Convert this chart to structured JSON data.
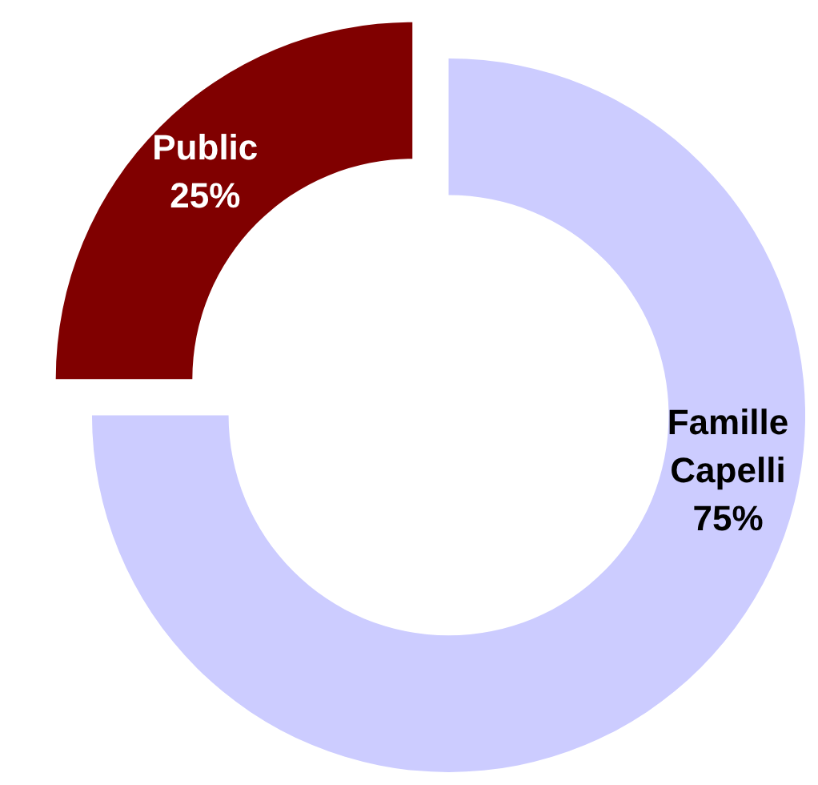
{
  "chart_data": {
    "type": "donut",
    "categories": [
      "Famille Capelli",
      "Public"
    ],
    "values": [
      75,
      25
    ],
    "value_labels": [
      "75%",
      "25%"
    ],
    "colors": [
      "#ccccff",
      "#800000"
    ],
    "legend": false
  }
}
